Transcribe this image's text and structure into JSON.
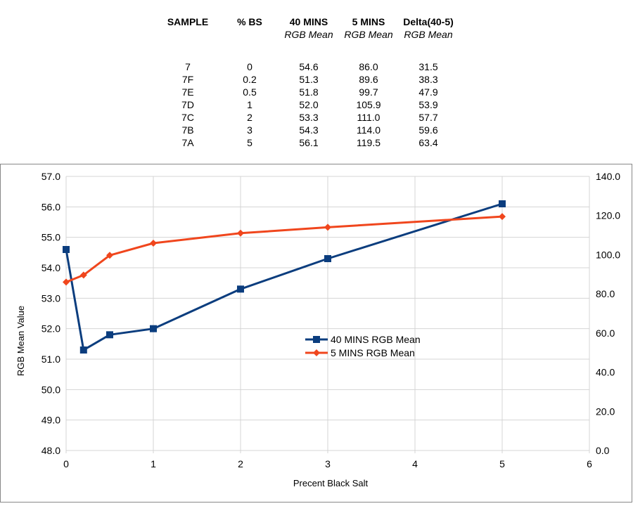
{
  "table": {
    "headers": [
      {
        "main": "SAMPLE",
        "sub": ""
      },
      {
        "main": "% BS",
        "sub": ""
      },
      {
        "main": "40 MINS",
        "sub": "RGB Mean"
      },
      {
        "main": "5 MINS",
        "sub": "RGB Mean"
      },
      {
        "main": "Delta(40-5)",
        "sub": "RGB Mean"
      }
    ],
    "rows": [
      [
        "7",
        "0",
        "54.6",
        "86.0",
        "31.5"
      ],
      [
        "7F",
        "0.2",
        "51.3",
        "89.6",
        "38.3"
      ],
      [
        "7E",
        "0.5",
        "51.8",
        "99.7",
        "47.9"
      ],
      [
        "7D",
        "1",
        "52.0",
        "105.9",
        "53.9"
      ],
      [
        "7C",
        "2",
        "53.3",
        "111.0",
        "57.7"
      ],
      [
        "7B",
        "3",
        "54.3",
        "114.0",
        "59.6"
      ],
      [
        "7A",
        "5",
        "56.1",
        "119.5",
        "63.4"
      ]
    ]
  },
  "chart_data": {
    "type": "line",
    "title": "",
    "xlabel": "Precent Black Salt",
    "ylabel": "RGB Mean Value",
    "y2label": "",
    "xlim": [
      0,
      6
    ],
    "xticks": [
      0,
      1,
      2,
      3,
      4,
      5,
      6
    ],
    "ylim": [
      48.0,
      57.0
    ],
    "yticks": [
      "48.0",
      "49.0",
      "50.0",
      "51.0",
      "52.0",
      "53.0",
      "54.0",
      "55.0",
      "56.0",
      "57.0"
    ],
    "y2lim": [
      0,
      140
    ],
    "y2ticks": [
      "0.0",
      "20.0",
      "40.0",
      "60.0",
      "80.0",
      "100.0",
      "120.0",
      "140.0"
    ],
    "grid": true,
    "legend_position": "center",
    "series": [
      {
        "name": "40 MINS RGB Mean",
        "axis": "left",
        "color": "#0b3d7e",
        "marker": "square",
        "x": [
          0,
          0.2,
          0.5,
          1,
          2,
          3,
          5
        ],
        "y": [
          54.6,
          51.3,
          51.8,
          52.0,
          53.3,
          54.3,
          56.1
        ]
      },
      {
        "name": "5 MINS RGB Mean",
        "axis": "right",
        "color": "#f0461d",
        "marker": "diamond",
        "x": [
          0,
          0.2,
          0.5,
          1,
          2,
          3,
          5
        ],
        "y": [
          86.0,
          89.6,
          99.7,
          105.9,
          111.0,
          114.0,
          119.5
        ]
      }
    ]
  }
}
